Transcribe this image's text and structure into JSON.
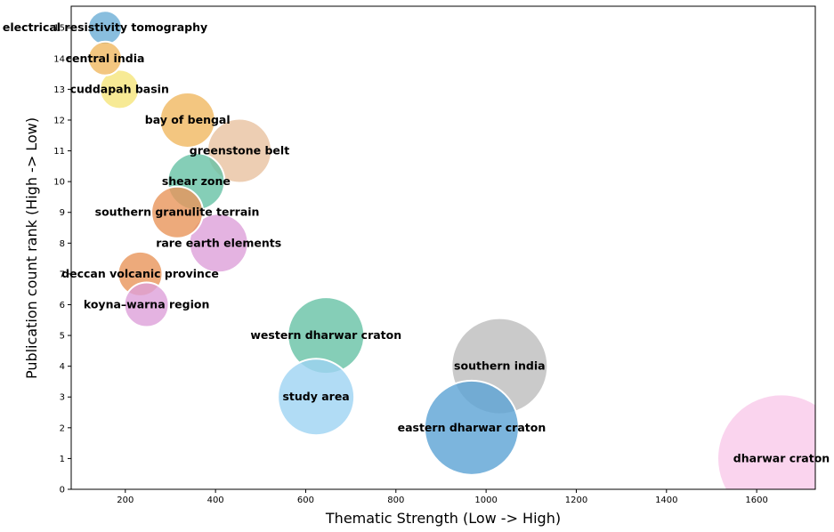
{
  "chart_data": {
    "type": "scatter",
    "title": "",
    "xlabel": "Thematic Strength (Low -> High)",
    "ylabel": "Publication count rank (High -> Low)",
    "xlim": [
      80,
      1730
    ],
    "ylim": [
      0,
      15.7
    ],
    "xticks": [
      200,
      400,
      600,
      800,
      1000,
      1200,
      1400,
      1600
    ],
    "yticks": [
      0,
      1,
      2,
      3,
      4,
      5,
      6,
      7,
      8,
      9,
      10,
      11,
      12,
      13,
      14,
      15
    ],
    "grid": false,
    "legend": "none",
    "points": [
      {
        "label": "electrical resistivity tomography",
        "x": 155,
        "y": 15,
        "size": 38,
        "color": "#6baed6"
      },
      {
        "label": "central india",
        "x": 155,
        "y": 14,
        "size": 38,
        "color": "#f0b860"
      },
      {
        "label": "cuddapah basin",
        "x": 187,
        "y": 13,
        "size": 44,
        "color": "#f5e57a"
      },
      {
        "label": "bay of bengal",
        "x": 338,
        "y": 12,
        "size": 62,
        "color": "#f0b860"
      },
      {
        "label": "greenstone belt",
        "x": 453,
        "y": 11,
        "size": 72,
        "color": "#e8c2a0"
      },
      {
        "label": "shear zone",
        "x": 357,
        "y": 10,
        "size": 64,
        "color": "#66c2a5"
      },
      {
        "label": "southern granulite terrain",
        "x": 315,
        "y": 9,
        "size": 58,
        "color": "#e8955a"
      },
      {
        "label": "rare earth elements",
        "x": 407,
        "y": 8,
        "size": 66,
        "color": "#dda0d9"
      },
      {
        "label": "deccan volcanic province",
        "x": 233,
        "y": 7,
        "size": 50,
        "color": "#e8955a"
      },
      {
        "label": "koyna–warna region",
        "x": 247,
        "y": 6,
        "size": 50,
        "color": "#dda0d9"
      },
      {
        "label": "western dharwar craton",
        "x": 645,
        "y": 5,
        "size": 86,
        "color": "#66c2a5"
      },
      {
        "label": "southern india",
        "x": 1030,
        "y": 4,
        "size": 108,
        "color": "#bdbdbd"
      },
      {
        "label": "study area",
        "x": 623,
        "y": 3,
        "size": 86,
        "color": "#9ed3f2"
      },
      {
        "label": "eastern dharwar craton",
        "x": 968,
        "y": 2,
        "size": 106,
        "color": "#5ba3d4"
      },
      {
        "label": "dharwar craton",
        "x": 1655,
        "y": 1,
        "size": 144,
        "color": "#f9c9ea"
      }
    ]
  }
}
